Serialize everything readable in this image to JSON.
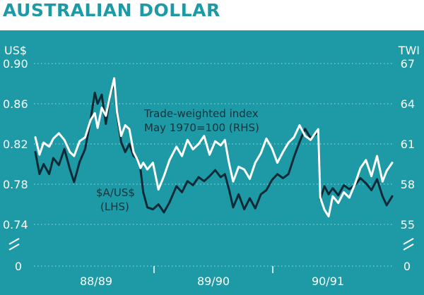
{
  "chart_data": {
    "type": "line",
    "title": "AUSTRALIAN DOLLAR",
    "left_axis_unit": "US$",
    "right_axis_unit": "TWI",
    "ylim_left": [
      0.72,
      0.92
    ],
    "ylim_right": [
      54,
      68
    ],
    "left_ticks": [
      "0.90",
      "0.86",
      "0.82",
      "0.78",
      "0.74"
    ],
    "right_ticks": [
      "67",
      "64",
      "61",
      "58",
      "55"
    ],
    "axis_break_bottom_label_left": "0",
    "axis_break_bottom_label_right": "0",
    "x_categories": [
      "88/89",
      "89/90",
      "90/91"
    ],
    "grid": true,
    "colors": {
      "background": "#1d9aa6",
      "usd_line": "#0e2a36",
      "twi_line": "#ffffff",
      "title": "#1d9aa6",
      "grid": "#7fd0d8"
    },
    "annotations": {
      "twi_line1": "Trade-weighted index",
      "twi_line2": "May 1970=100 (RHS)",
      "usd_line1": "$A/US$",
      "usd_line2": "(LHS)"
    },
    "series": [
      {
        "name": "$A/US$",
        "axis": "left",
        "values": [
          [
            1988.5,
            0.812
          ],
          [
            1988.53,
            0.79
          ],
          [
            1988.56,
            0.8
          ],
          [
            1988.6,
            0.79
          ],
          [
            1988.63,
            0.806
          ],
          [
            1988.67,
            0.799
          ],
          [
            1988.71,
            0.815
          ],
          [
            1988.75,
            0.795
          ],
          [
            1988.78,
            0.782
          ],
          [
            1988.82,
            0.802
          ],
          [
            1988.86,
            0.815
          ],
          [
            1988.9,
            0.845
          ],
          [
            1988.93,
            0.871
          ],
          [
            1988.95,
            0.86
          ],
          [
            1988.98,
            0.869
          ],
          [
            1989.01,
            0.84
          ],
          [
            1989.04,
            0.868
          ],
          [
            1989.07,
            0.88
          ],
          [
            1989.09,
            0.85
          ],
          [
            1989.12,
            0.822
          ],
          [
            1989.15,
            0.812
          ],
          [
            1989.18,
            0.82
          ],
          [
            1989.21,
            0.808
          ],
          [
            1989.24,
            0.805
          ],
          [
            1989.26,
            0.795
          ],
          [
            1989.28,
            0.772
          ],
          [
            1989.31,
            0.757
          ],
          [
            1989.35,
            0.755
          ],
          [
            1989.39,
            0.76
          ],
          [
            1989.43,
            0.752
          ],
          [
            1989.47,
            0.762
          ],
          [
            1989.52,
            0.778
          ],
          [
            1989.56,
            0.772
          ],
          [
            1989.6,
            0.783
          ],
          [
            1989.64,
            0.779
          ],
          [
            1989.68,
            0.787
          ],
          [
            1989.72,
            0.783
          ],
          [
            1989.76,
            0.788
          ],
          [
            1989.8,
            0.794
          ],
          [
            1989.84,
            0.787
          ],
          [
            1989.87,
            0.79
          ],
          [
            1989.9,
            0.775
          ],
          [
            1989.93,
            0.757
          ],
          [
            1989.97,
            0.77
          ],
          [
            1990.01,
            0.755
          ],
          [
            1990.05,
            0.766
          ],
          [
            1990.09,
            0.756
          ],
          [
            1990.13,
            0.77
          ],
          [
            1990.17,
            0.774
          ],
          [
            1990.21,
            0.784
          ],
          [
            1990.25,
            0.79
          ],
          [
            1990.29,
            0.786
          ],
          [
            1990.33,
            0.79
          ],
          [
            1990.37,
            0.807
          ],
          [
            1990.41,
            0.822
          ],
          [
            1990.45,
            0.835
          ],
          [
            1990.49,
            0.826
          ],
          [
            1990.53,
            0.83
          ],
          [
            1990.545,
            0.833
          ],
          [
            1990.56,
            0.765
          ],
          [
            1990.59,
            0.778
          ],
          [
            1990.62,
            0.77
          ],
          [
            1990.65,
            0.776
          ],
          [
            1990.69,
            0.769
          ],
          [
            1990.73,
            0.779
          ],
          [
            1990.77,
            0.775
          ],
          [
            1990.81,
            0.779
          ],
          [
            1990.85,
            0.786
          ],
          [
            1990.89,
            0.781
          ],
          [
            1990.93,
            0.774
          ],
          [
            1990.97,
            0.785
          ],
          [
            1991.01,
            0.768
          ],
          [
            1991.04,
            0.759
          ],
          [
            1991.08,
            0.768
          ]
        ]
      },
      {
        "name": "Trade-weighted index",
        "axis": "right",
        "values": [
          [
            1988.5,
            61.5
          ],
          [
            1988.53,
            60.2
          ],
          [
            1988.56,
            61.1
          ],
          [
            1988.6,
            60.8
          ],
          [
            1988.63,
            61.4
          ],
          [
            1988.67,
            61.8
          ],
          [
            1988.71,
            61.3
          ],
          [
            1988.75,
            60.4
          ],
          [
            1988.78,
            60.1
          ],
          [
            1988.82,
            61.2
          ],
          [
            1988.86,
            61.5
          ],
          [
            1988.9,
            62.8
          ],
          [
            1988.93,
            63.3
          ],
          [
            1988.95,
            62.2
          ],
          [
            1988.98,
            63.7
          ],
          [
            1989.01,
            63.1
          ],
          [
            1989.04,
            64.6
          ],
          [
            1989.07,
            65.9
          ],
          [
            1989.09,
            63.4
          ],
          [
            1989.12,
            61.6
          ],
          [
            1989.15,
            62.4
          ],
          [
            1989.18,
            62.1
          ],
          [
            1989.21,
            60.4
          ],
          [
            1989.24,
            59.8
          ],
          [
            1989.26,
            59.2
          ],
          [
            1989.28,
            59.6
          ],
          [
            1989.31,
            59.1
          ],
          [
            1989.35,
            59.6
          ],
          [
            1989.39,
            57.6
          ],
          [
            1989.43,
            58.6
          ],
          [
            1989.47,
            59.8
          ],
          [
            1989.52,
            60.8
          ],
          [
            1989.56,
            60.1
          ],
          [
            1989.6,
            61.3
          ],
          [
            1989.64,
            60.6
          ],
          [
            1989.68,
            61.0
          ],
          [
            1989.72,
            61.6
          ],
          [
            1989.76,
            60.2
          ],
          [
            1989.8,
            61.2
          ],
          [
            1989.84,
            60.9
          ],
          [
            1989.87,
            61.3
          ],
          [
            1989.9,
            59.6
          ],
          [
            1989.93,
            58.2
          ],
          [
            1989.97,
            59.3
          ],
          [
            1990.01,
            59.1
          ],
          [
            1990.05,
            58.4
          ],
          [
            1990.09,
            59.6
          ],
          [
            1990.13,
            60.3
          ],
          [
            1990.17,
            61.4
          ],
          [
            1990.21,
            60.7
          ],
          [
            1990.25,
            59.6
          ],
          [
            1990.29,
            60.4
          ],
          [
            1990.33,
            61.1
          ],
          [
            1990.37,
            61.5
          ],
          [
            1990.41,
            62.4
          ],
          [
            1990.45,
            61.6
          ],
          [
            1990.49,
            61.3
          ],
          [
            1990.53,
            61.9
          ],
          [
            1990.545,
            62.1
          ],
          [
            1990.56,
            57.0
          ],
          [
            1990.59,
            56.1
          ],
          [
            1990.62,
            55.6
          ],
          [
            1990.65,
            57.1
          ],
          [
            1990.69,
            56.6
          ],
          [
            1990.73,
            57.4
          ],
          [
            1990.77,
            57.0
          ],
          [
            1990.81,
            58.0
          ],
          [
            1990.85,
            59.2
          ],
          [
            1990.89,
            59.8
          ],
          [
            1990.93,
            58.6
          ],
          [
            1990.97,
            60.1
          ],
          [
            1991.01,
            58.2
          ],
          [
            1991.04,
            59.0
          ],
          [
            1991.08,
            59.6
          ]
        ]
      }
    ]
  }
}
